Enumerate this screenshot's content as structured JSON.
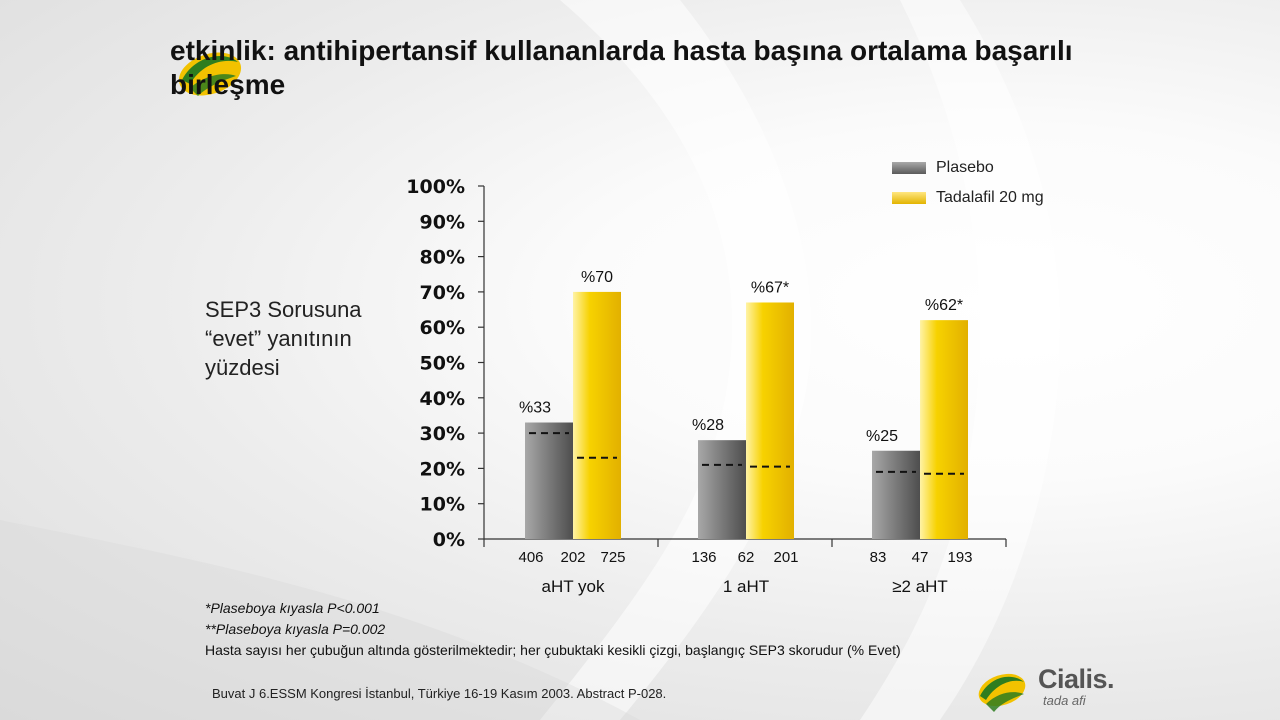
{
  "title": "etkinlik: antihipertansif kullananlarda hasta başına ortalama başarılı birleşme",
  "y_axis_text": "SEP3 Sorusuna “evet” yanıtının yüzdesi",
  "legend": {
    "plasebo": "Plasebo",
    "tadalafil": "Tadalafil 20 mg"
  },
  "colors": {
    "plasebo": "#7a7a7a",
    "tadalafil": "#f5c800"
  },
  "chart_data": {
    "type": "bar",
    "categories": [
      "aHT yok",
      "1 aHT",
      "≥2 aHT"
    ],
    "series": [
      {
        "name": "Plasebo",
        "values": [
          33,
          28,
          25
        ],
        "labels": [
          "%33",
          "%28",
          "%25"
        ],
        "baseline": [
          30,
          21,
          19
        ]
      },
      {
        "name": "Tadalafil 20 mg",
        "values": [
          70,
          67,
          62
        ],
        "labels": [
          "%70",
          "%67*",
          "%62*"
        ],
        "baseline": [
          23,
          20.5,
          18.5
        ]
      }
    ],
    "patient_counts": [
      [
        "406",
        "202",
        "725"
      ],
      [
        "136",
        "62",
        "201"
      ],
      [
        "83",
        "47",
        "193"
      ]
    ],
    "y_ticks": [
      "0%",
      "10%",
      "20%",
      "30%",
      "40%",
      "50%",
      "60%",
      "70%",
      "80%",
      "90%",
      "100%"
    ],
    "ylim": [
      0,
      100
    ],
    "grid": false,
    "legend_position": "top-right"
  },
  "footnotes": {
    "p1": "*Plaseboya kıyasla P<0.001",
    "p2": "**Plaseboya kıyasla P=0.002",
    "note": "Hasta sayısı her çubuğun altında gösterilmektedir; her çubuktaki kesikli çizgi, başlangıç SEP3 skorudur (% Evet)"
  },
  "reference": "Buvat J  6.ESSM Kongresi İstanbul, Türkiye 16-19 Kasım 2003. Abstract P-028.",
  "brand": {
    "name": "Cialis.",
    "tagline": "tada afi"
  }
}
